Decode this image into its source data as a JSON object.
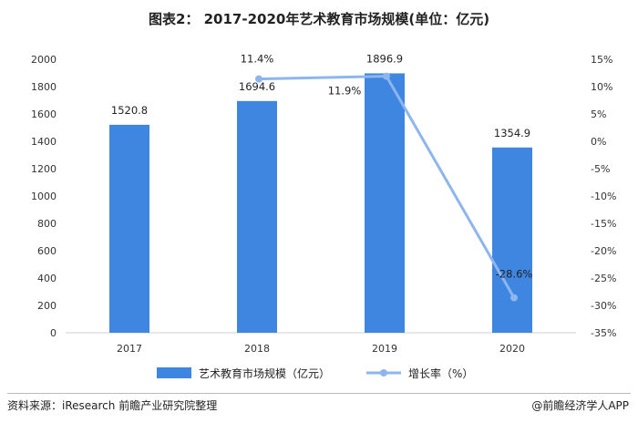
{
  "chart_data": {
    "type": "bar",
    "title": "图表2： 2017-2020年艺术教育市场规模(单位：亿元)",
    "categories": [
      "2017",
      "2018",
      "2019",
      "2020"
    ],
    "series": [
      {
        "name": "艺术教育市场规模（亿元）",
        "type": "bar",
        "axis": "left",
        "values": [
          1520.8,
          1694.6,
          1896.9,
          1354.9
        ],
        "labels": [
          "1520.8",
          "1694.6",
          "1896.9",
          "1354.9"
        ],
        "color": "#3f86e0"
      },
      {
        "name": "增长率（%）",
        "type": "line",
        "axis": "right",
        "values": [
          null,
          11.4,
          11.9,
          -28.6
        ],
        "labels": [
          "",
          "11.4%",
          "11.9%",
          "-28.6%"
        ],
        "color": "#8db6ef"
      }
    ],
    "y_left": {
      "min": 0,
      "max": 2000,
      "step": 200,
      "ticks": [
        "0",
        "200",
        "400",
        "600",
        "800",
        "1000",
        "1200",
        "1400",
        "1600",
        "1800",
        "2000"
      ]
    },
    "y_right": {
      "min": -35,
      "max": 15,
      "step": 5,
      "ticks": [
        "-35%",
        "-30%",
        "-25%",
        "-20%",
        "-15%",
        "-10%",
        "-5%",
        "0%",
        "5%",
        "10%",
        "15%"
      ]
    },
    "grid": false,
    "legend": "bottom"
  },
  "footer": {
    "source": "资料来源：iResearch 前瞻产业研究院整理",
    "brand": "@前瞻经济学人APP"
  }
}
